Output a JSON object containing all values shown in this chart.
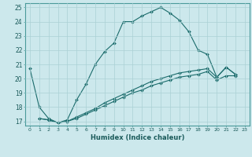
{
  "xlabel": "Humidex (Indice chaleur)",
  "bg_color": "#cce8ec",
  "grid_color": "#aad0d5",
  "line_color": "#1a6b6b",
  "xlim": [
    -0.5,
    23.5
  ],
  "ylim": [
    16.7,
    25.3
  ],
  "yticks": [
    17,
    18,
    19,
    20,
    21,
    22,
    23,
    24,
    25
  ],
  "xticks": [
    0,
    1,
    2,
    3,
    4,
    5,
    6,
    7,
    8,
    9,
    10,
    11,
    12,
    13,
    14,
    15,
    16,
    17,
    18,
    19,
    20,
    21,
    22,
    23
  ],
  "series": [
    {
      "x": [
        0,
        1,
        2,
        3,
        4,
        5,
        6,
        7,
        8,
        9,
        10,
        11,
        12,
        13,
        14,
        15,
        16,
        17,
        18,
        19,
        20,
        21,
        22
      ],
      "y": [
        20.7,
        18.0,
        17.2,
        16.9,
        17.1,
        18.5,
        19.6,
        21.0,
        21.9,
        22.5,
        24.0,
        24.0,
        24.4,
        24.7,
        25.0,
        24.6,
        24.1,
        23.3,
        22.0,
        21.7,
        20.1,
        20.8,
        20.3
      ]
    },
    {
      "x": [
        1,
        2,
        3,
        4,
        5,
        6,
        7,
        8,
        9,
        10,
        11,
        12,
        13,
        14,
        15,
        16,
        17,
        18,
        19,
        20,
        21,
        22
      ],
      "y": [
        17.2,
        17.1,
        16.9,
        17.0,
        17.3,
        17.6,
        17.9,
        18.3,
        18.6,
        18.9,
        19.2,
        19.5,
        19.8,
        20.0,
        20.2,
        20.4,
        20.5,
        20.6,
        20.7,
        20.1,
        20.8,
        20.3
      ]
    },
    {
      "x": [
        1,
        2,
        3,
        4,
        5,
        6,
        7,
        8,
        9,
        10,
        11,
        12,
        13,
        14,
        15,
        16,
        17,
        18,
        19,
        20,
        21,
        22
      ],
      "y": [
        17.2,
        17.1,
        16.9,
        17.0,
        17.2,
        17.5,
        17.8,
        18.1,
        18.4,
        18.7,
        19.0,
        19.2,
        19.5,
        19.7,
        19.9,
        20.1,
        20.2,
        20.3,
        20.5,
        19.9,
        20.2,
        20.2
      ]
    }
  ]
}
